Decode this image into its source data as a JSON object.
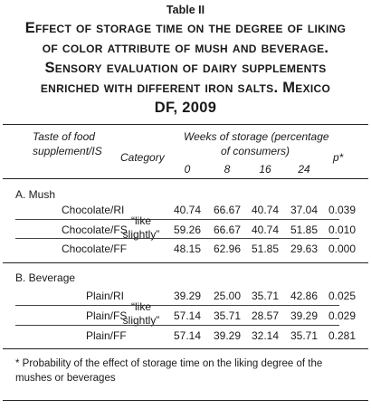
{
  "table": {
    "label": "Table II",
    "title_lines": [
      "Effect of storage time on the degree of liking",
      "of color attribute of mush and beverage.",
      "Sensory evaluation of dairy supplements",
      "enriched with different iron salts. Mexico",
      "DF, 2009"
    ],
    "headers": {
      "taste_line1": "Taste of food",
      "taste_line2": "supplement/IS",
      "category": "Category",
      "weeks_line1": "Weeks of storage (percentage",
      "weeks_line2": "of consumers)",
      "weeks": [
        "0",
        "8",
        "16",
        "24"
      ],
      "p": "p*"
    },
    "sections": [
      {
        "name": "A. Mush",
        "category_line1": "“like",
        "category_line2": "slightly”",
        "rows": [
          {
            "label": "Chocolate/RI",
            "values": [
              "40.74",
              "66.67",
              "40.74",
              "37.04"
            ],
            "p": "0.039"
          },
          {
            "label": "Chocolate/FS",
            "values": [
              "59.26",
              "66.67",
              "40.74",
              "51.85"
            ],
            "p": "0.010"
          },
          {
            "label": "Chocolate/FF",
            "values": [
              "48.15",
              "62.96",
              "51.85",
              "29.63"
            ],
            "p": "0.000"
          }
        ]
      },
      {
        "name": "B. Beverage",
        "category_line1": "“like",
        "category_line2": "slightly”",
        "rows": [
          {
            "label": "Plain/RI",
            "values": [
              "39.29",
              "25.00",
              "35.71",
              "42.86"
            ],
            "p": "0.025"
          },
          {
            "label": "Plain/FS",
            "values": [
              "57.14",
              "35.71",
              "28.57",
              "39.29"
            ],
            "p": "0.029"
          },
          {
            "label": "Plain/FF",
            "values": [
              "57.14",
              "39.29",
              "32.14",
              "35.71"
            ],
            "p": "0.281"
          }
        ]
      }
    ],
    "footnote": "* Probability of the effect of storage time on the liking degree of the mushes or beverages"
  }
}
